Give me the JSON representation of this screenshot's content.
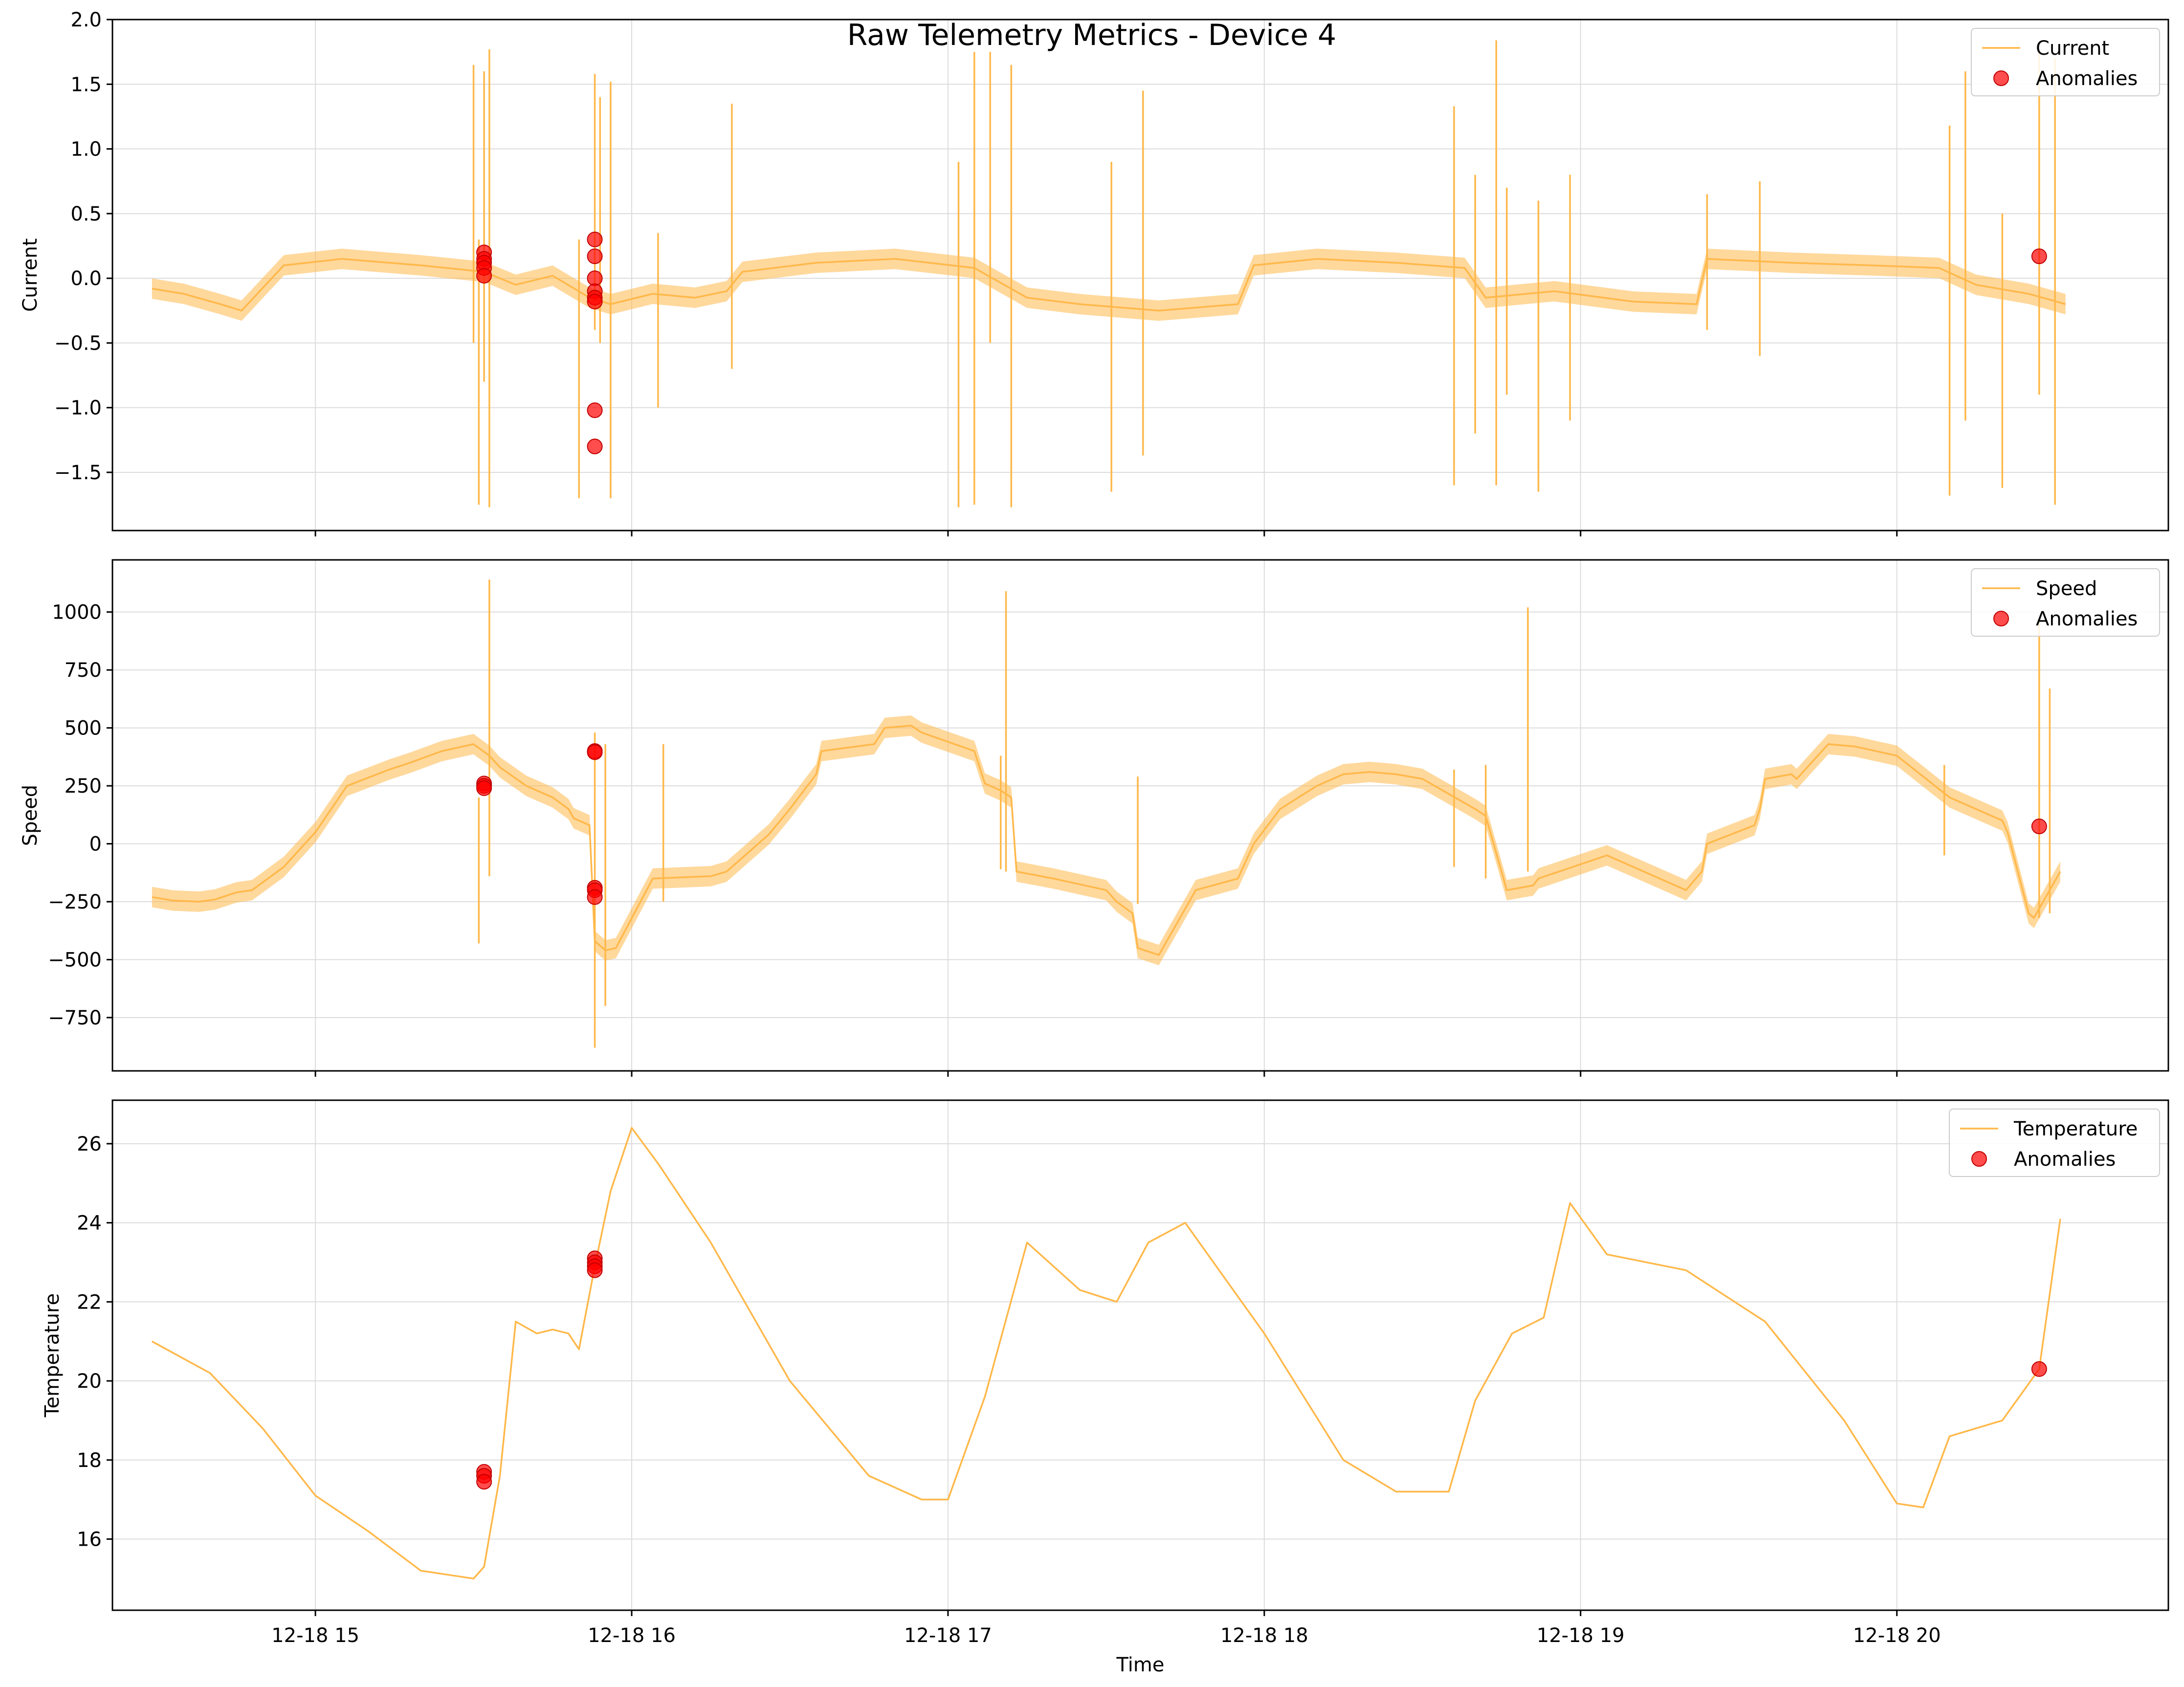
{
  "figure": {
    "title": "Raw Telemetry Metrics - Device 4"
  },
  "colors": {
    "line": "#ffb84a",
    "anomaly": "#ff0000",
    "grid": "#dcdcdc",
    "axes": "#000000"
  },
  "chart_data": [
    {
      "type": "line",
      "title": "",
      "xlabel": "",
      "ylabel": "Current",
      "xlim": [
        "2024-12-18T14:21:30",
        "2024-12-18T20:51:30"
      ],
      "ylim": [
        -1.95,
        2.0
      ],
      "yticks": [
        -1.5,
        -1.0,
        -0.5,
        0.0,
        0.5,
        1.0,
        1.5,
        2.0
      ],
      "ytick_labels": [
        "−1.5",
        "−1.0",
        "−0.5",
        "0.0",
        "0.5",
        "1.0",
        "1.5",
        "2.0"
      ],
      "xticks": [
        "2024-12-18T15:00",
        "2024-12-18T16:00",
        "2024-12-18T17:00",
        "2024-12-18T18:00",
        "2024-12-18T19:00",
        "2024-12-18T20:00"
      ],
      "xtick_labels": [
        "",
        "",
        "",
        "",
        "",
        ""
      ],
      "grid": true,
      "legend": {
        "placement": "top-right",
        "entries": [
          "Current",
          "Anomalies"
        ]
      },
      "series": [
        {
          "name": "Current",
          "style": "line",
          "x": [
            "2024-12-18T14:29",
            "2024-12-18T14:35",
            "2024-12-18T14:42",
            "2024-12-18T14:46",
            "2024-12-18T14:54",
            "2024-12-18T15:05",
            "2024-12-18T15:20",
            "2024-12-18T15:32",
            "2024-12-18T15:38",
            "2024-12-18T15:45",
            "2024-12-18T15:52",
            "2024-12-18T15:56",
            "2024-12-18T16:04",
            "2024-12-18T16:12",
            "2024-12-18T16:18",
            "2024-12-18T16:21",
            "2024-12-18T16:35",
            "2024-12-18T16:50",
            "2024-12-18T17:05",
            "2024-12-18T17:15",
            "2024-12-18T17:25",
            "2024-12-18T17:40",
            "2024-12-18T17:55",
            "2024-12-18T17:58",
            "2024-12-18T18:10",
            "2024-12-18T18:25",
            "2024-12-18T18:38",
            "2024-12-18T18:42",
            "2024-12-18T18:55",
            "2024-12-18T19:10",
            "2024-12-18T19:22",
            "2024-12-18T19:24",
            "2024-12-18T19:40",
            "2024-12-18T19:55",
            "2024-12-18T20:08",
            "2024-12-18T20:15",
            "2024-12-18T20:25",
            "2024-12-18T20:32"
          ],
          "y": [
            -0.08,
            -0.12,
            -0.2,
            -0.25,
            0.1,
            0.15,
            0.1,
            0.05,
            -0.05,
            0.02,
            -0.15,
            -0.2,
            -0.12,
            -0.15,
            -0.1,
            0.05,
            0.12,
            0.15,
            0.08,
            -0.15,
            -0.2,
            -0.25,
            -0.2,
            0.1,
            0.15,
            0.12,
            0.08,
            -0.15,
            -0.1,
            -0.18,
            -0.2,
            0.15,
            0.12,
            0.1,
            0.08,
            -0.05,
            -0.12,
            -0.2
          ],
          "spikes": [
            {
              "x": "2024-12-18T15:30",
              "low": -0.5,
              "high": 1.65
            },
            {
              "x": "2024-12-18T15:31",
              "low": -1.75,
              "high": 0.3
            },
            {
              "x": "2024-12-18T15:32",
              "low": -0.8,
              "high": 1.6
            },
            {
              "x": "2024-12-18T15:33",
              "low": -1.77,
              "high": 1.77
            },
            {
              "x": "2024-12-18T15:50",
              "low": -1.7,
              "high": 0.3
            },
            {
              "x": "2024-12-18T15:53",
              "low": -0.4,
              "high": 1.58
            },
            {
              "x": "2024-12-18T15:54",
              "low": -0.5,
              "high": 1.4
            },
            {
              "x": "2024-12-18T15:56",
              "low": -1.7,
              "high": 1.52
            },
            {
              "x": "2024-12-18T16:05",
              "low": -1.0,
              "high": 0.35
            },
            {
              "x": "2024-12-18T16:19",
              "low": -0.7,
              "high": 1.35
            },
            {
              "x": "2024-12-18T17:02",
              "low": -1.77,
              "high": 0.9
            },
            {
              "x": "2024-12-18T17:05",
              "low": -1.75,
              "high": 1.75
            },
            {
              "x": "2024-12-18T17:08",
              "low": -0.5,
              "high": 1.75
            },
            {
              "x": "2024-12-18T17:12",
              "low": -1.77,
              "high": 1.65
            },
            {
              "x": "2024-12-18T17:31",
              "low": -1.65,
              "high": 0.9
            },
            {
              "x": "2024-12-18T17:37",
              "low": -1.37,
              "high": 1.45
            },
            {
              "x": "2024-12-18T18:36",
              "low": -1.6,
              "high": 1.33
            },
            {
              "x": "2024-12-18T18:40",
              "low": -1.2,
              "high": 0.8
            },
            {
              "x": "2024-12-18T18:44",
              "low": -1.6,
              "high": 1.84
            },
            {
              "x": "2024-12-18T18:46",
              "low": -0.9,
              "high": 0.7
            },
            {
              "x": "2024-12-18T18:52",
              "low": -1.65,
              "high": 0.6
            },
            {
              "x": "2024-12-18T18:58",
              "low": -1.1,
              "high": 0.8
            },
            {
              "x": "2024-12-18T19:24",
              "low": -0.4,
              "high": 0.65
            },
            {
              "x": "2024-12-18T19:34",
              "low": -0.6,
              "high": 0.75
            },
            {
              "x": "2024-12-18T20:10",
              "low": -1.68,
              "high": 1.18
            },
            {
              "x": "2024-12-18T20:13",
              "low": -1.1,
              "high": 1.6
            },
            {
              "x": "2024-12-18T20:20",
              "low": -1.62,
              "high": 0.5
            },
            {
              "x": "2024-12-18T20:27",
              "low": -0.9,
              "high": 1.75
            },
            {
              "x": "2024-12-18T20:30",
              "low": -1.75,
              "high": 1.7
            }
          ]
        },
        {
          "name": "Anomalies",
          "style": "scatter",
          "x": [
            "2024-12-18T15:32",
            "2024-12-18T15:32",
            "2024-12-18T15:32",
            "2024-12-18T15:32",
            "2024-12-18T15:32",
            "2024-12-18T15:53",
            "2024-12-18T15:53",
            "2024-12-18T15:53",
            "2024-12-18T15:53",
            "2024-12-18T15:53",
            "2024-12-18T15:53",
            "2024-12-18T15:53",
            "2024-12-18T15:53",
            "2024-12-18T20:27"
          ],
          "y": [
            0.2,
            0.15,
            0.12,
            0.08,
            0.02,
            0.3,
            0.17,
            0.0,
            -0.1,
            -0.15,
            -0.18,
            -1.02,
            -1.3,
            0.17
          ]
        }
      ]
    },
    {
      "type": "line",
      "title": "",
      "xlabel": "",
      "ylabel": "Speed",
      "xlim": [
        "2024-12-18T14:21:30",
        "2024-12-18T20:51:30"
      ],
      "ylim": [
        -980,
        1225
      ],
      "yticks": [
        -750,
        -500,
        -250,
        0,
        250,
        500,
        750,
        1000
      ],
      "ytick_labels": [
        "−750",
        "−500",
        "−250",
        "0",
        "250",
        "500",
        "750",
        "1000"
      ],
      "xticks": [
        "2024-12-18T15:00",
        "2024-12-18T16:00",
        "2024-12-18T17:00",
        "2024-12-18T18:00",
        "2024-12-18T19:00",
        "2024-12-18T20:00"
      ],
      "xtick_labels": [
        "",
        "",
        "",
        "",
        "",
        ""
      ],
      "grid": true,
      "legend": {
        "placement": "top-right",
        "entries": [
          "Speed",
          "Anomalies"
        ]
      },
      "series": [
        {
          "name": "Speed",
          "style": "line",
          "x": [
            "2024-12-18T14:29",
            "2024-12-18T14:33",
            "2024-12-18T14:38",
            "2024-12-18T14:41",
            "2024-12-18T14:45",
            "2024-12-18T14:48",
            "2024-12-18T14:54",
            "2024-12-18T15:00",
            "2024-12-18T15:06",
            "2024-12-18T15:14",
            "2024-12-18T15:18",
            "2024-12-18T15:24",
            "2024-12-18T15:30",
            "2024-12-18T15:33",
            "2024-12-18T15:35",
            "2024-12-18T15:40",
            "2024-12-18T15:45",
            "2024-12-18T15:48",
            "2024-12-18T15:49",
            "2024-12-18T15:52",
            "2024-12-18T15:53",
            "2024-12-18T15:54",
            "2024-12-18T15:55",
            "2024-12-18T15:57",
            "2024-12-18T16:04",
            "2024-12-18T16:15",
            "2024-12-18T16:18",
            "2024-12-18T16:26",
            "2024-12-18T16:30",
            "2024-12-18T16:35",
            "2024-12-18T16:36",
            "2024-12-18T16:46",
            "2024-12-18T16:48",
            "2024-12-18T16:53",
            "2024-12-18T16:55",
            "2024-12-18T17:00",
            "2024-12-18T17:05",
            "2024-12-18T17:07",
            "2024-12-18T17:10",
            "2024-12-18T17:12",
            "2024-12-18T17:13",
            "2024-12-18T17:20",
            "2024-12-18T17:30",
            "2024-12-18T17:32",
            "2024-12-18T17:35",
            "2024-12-18T17:36",
            "2024-12-18T17:40",
            "2024-12-18T17:47",
            "2024-12-18T17:55",
            "2024-12-18T17:58",
            "2024-12-18T18:03",
            "2024-12-18T18:10",
            "2024-12-18T18:15",
            "2024-12-18T18:20",
            "2024-12-18T18:25",
            "2024-12-18T18:30",
            "2024-12-18T18:40",
            "2024-12-18T18:42",
            "2024-12-18T18:46",
            "2024-12-18T18:51",
            "2024-12-18T18:52",
            "2024-12-18T19:05",
            "2024-12-18T19:20",
            "2024-12-18T19:23",
            "2024-12-18T19:24",
            "2024-12-18T19:33",
            "2024-12-18T19:34",
            "2024-12-18T19:35",
            "2024-12-18T19:40",
            "2024-12-18T19:41",
            "2024-12-18T19:47",
            "2024-12-18T19:52",
            "2024-12-18T20:00",
            "2024-12-18T20:10",
            "2024-12-18T20:20",
            "2024-12-18T20:21",
            "2024-12-18T20:25",
            "2024-12-18T20:26",
            "2024-12-18T20:31"
          ],
          "y": [
            -230,
            -245,
            -250,
            -240,
            -210,
            -200,
            -100,
            50,
            250,
            320,
            350,
            400,
            430,
            380,
            330,
            250,
            200,
            150,
            110,
            80,
            -420,
            -440,
            -460,
            -450,
            -150,
            -140,
            -120,
            40,
            150,
            300,
            400,
            430,
            500,
            510,
            480,
            440,
            400,
            260,
            230,
            200,
            -120,
            -150,
            -200,
            -250,
            -300,
            -450,
            -480,
            -200,
            -150,
            0,
            150,
            250,
            300,
            310,
            300,
            280,
            150,
            120,
            -200,
            -180,
            -150,
            -50,
            -200,
            -120,
            0,
            80,
            150,
            280,
            300,
            280,
            430,
            420,
            380,
            200,
            100,
            50,
            -300,
            -320,
            -120
          ],
          "spikes": [
            {
              "x": "2024-12-18T15:31",
              "low": -430,
              "high": 200
            },
            {
              "x": "2024-12-18T15:33",
              "low": -140,
              "high": 1140
            },
            {
              "x": "2024-12-18T15:53",
              "low": -880,
              "high": 480
            },
            {
              "x": "2024-12-18T15:55",
              "low": -700,
              "high": 430
            },
            {
              "x": "2024-12-18T16:06",
              "low": -250,
              "high": 430
            },
            {
              "x": "2024-12-18T17:10",
              "low": -110,
              "high": 380
            },
            {
              "x": "2024-12-18T17:11",
              "low": -120,
              "high": 1090
            },
            {
              "x": "2024-12-18T17:36",
              "low": -260,
              "high": 290
            },
            {
              "x": "2024-12-18T18:36",
              "low": -100,
              "high": 320
            },
            {
              "x": "2024-12-18T18:42",
              "low": -150,
              "high": 340
            },
            {
              "x": "2024-12-18T18:50",
              "low": -120,
              "high": 1020
            },
            {
              "x": "2024-12-18T20:09",
              "low": -50,
              "high": 340
            },
            {
              "x": "2024-12-18T20:27",
              "low": -320,
              "high": 970
            },
            {
              "x": "2024-12-18T20:29",
              "low": -300,
              "high": 670
            }
          ]
        },
        {
          "name": "Anomalies",
          "style": "scatter",
          "x": [
            "2024-12-18T15:32",
            "2024-12-18T15:32",
            "2024-12-18T15:32",
            "2024-12-18T15:53",
            "2024-12-18T15:53",
            "2024-12-18T15:53",
            "2024-12-18T15:53",
            "2024-12-18T15:53",
            "2024-12-18T20:27"
          ],
          "y": [
            260,
            250,
            240,
            400,
            395,
            -190,
            -200,
            -230,
            75
          ]
        }
      ]
    },
    {
      "type": "line",
      "title": "",
      "xlabel": "Time",
      "ylabel": "Temperature",
      "xlim": [
        "2024-12-18T14:21:30",
        "2024-12-18T20:51:30"
      ],
      "ylim": [
        14.2,
        27.1
      ],
      "yticks": [
        16,
        18,
        20,
        22,
        24,
        26
      ],
      "ytick_labels": [
        "16",
        "18",
        "20",
        "22",
        "24",
        "26"
      ],
      "xticks": [
        "2024-12-18T15:00",
        "2024-12-18T16:00",
        "2024-12-18T17:00",
        "2024-12-18T18:00",
        "2024-12-18T19:00",
        "2024-12-18T20:00"
      ],
      "xtick_labels": [
        "12-18 15",
        "12-18 16",
        "12-18 17",
        "12-18 18",
        "12-18 19",
        "12-18 20"
      ],
      "grid": true,
      "legend": {
        "placement": "top-right",
        "entries": [
          "Temperature",
          "Anomalies"
        ]
      },
      "series": [
        {
          "name": "Temperature",
          "style": "line",
          "x": [
            "2024-12-18T14:29",
            "2024-12-18T14:40",
            "2024-12-18T14:50",
            "2024-12-18T15:00",
            "2024-12-18T15:10",
            "2024-12-18T15:20",
            "2024-12-18T15:30",
            "2024-12-18T15:32",
            "2024-12-18T15:35",
            "2024-12-18T15:38",
            "2024-12-18T15:42",
            "2024-12-18T15:45",
            "2024-12-18T15:48",
            "2024-12-18T15:50",
            "2024-12-18T15:53",
            "2024-12-18T15:56",
            "2024-12-18T16:00",
            "2024-12-18T16:05",
            "2024-12-18T16:15",
            "2024-12-18T16:30",
            "2024-12-18T16:45",
            "2024-12-18T16:55",
            "2024-12-18T17:00",
            "2024-12-18T17:07",
            "2024-12-18T17:15",
            "2024-12-18T17:25",
            "2024-12-18T17:32",
            "2024-12-18T17:38",
            "2024-12-18T17:45",
            "2024-12-18T18:00",
            "2024-12-18T18:15",
            "2024-12-18T18:25",
            "2024-12-18T18:35",
            "2024-12-18T18:40",
            "2024-12-18T18:47",
            "2024-12-18T18:53",
            "2024-12-18T18:58",
            "2024-12-18T19:05",
            "2024-12-18T19:20",
            "2024-12-18T19:35",
            "2024-12-18T19:50",
            "2024-12-18T20:00",
            "2024-12-18T20:05",
            "2024-12-18T20:10",
            "2024-12-18T20:20",
            "2024-12-18T20:27",
            "2024-12-18T20:31"
          ],
          "y": [
            21.0,
            20.2,
            18.8,
            17.1,
            16.2,
            15.2,
            15.0,
            15.3,
            17.6,
            21.5,
            21.2,
            21.3,
            21.2,
            20.8,
            22.9,
            24.8,
            26.4,
            25.5,
            23.5,
            20.0,
            17.6,
            17.0,
            17.0,
            19.6,
            23.5,
            22.3,
            22.0,
            23.5,
            24.0,
            21.2,
            18.0,
            17.2,
            17.2,
            19.5,
            21.2,
            21.6,
            24.5,
            23.2,
            22.8,
            21.5,
            19.0,
            16.9,
            16.8,
            18.6,
            19.0,
            20.3,
            24.1
          ]
        },
        {
          "name": "Anomalies",
          "style": "scatter",
          "x": [
            "2024-12-18T15:32",
            "2024-12-18T15:32",
            "2024-12-18T15:32",
            "2024-12-18T15:53",
            "2024-12-18T15:53",
            "2024-12-18T15:53",
            "2024-12-18T15:53",
            "2024-12-18T20:27"
          ],
          "y": [
            17.7,
            17.6,
            17.45,
            23.1,
            23.0,
            22.9,
            22.8,
            20.3
          ]
        }
      ]
    }
  ]
}
